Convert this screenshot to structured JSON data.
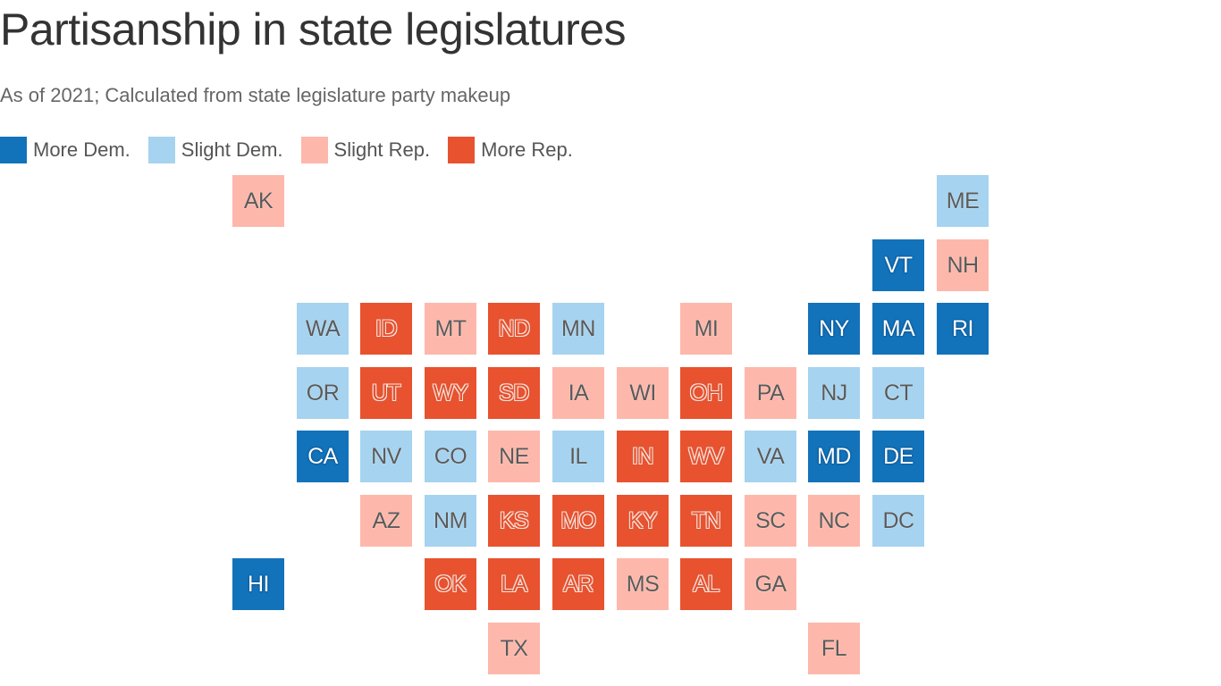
{
  "title": "Partisanship in state legislatures",
  "subtitle": "As of 2021; Calculated from state legislature party makeup",
  "legend": [
    {
      "key": "more_dem",
      "label": "More Dem.",
      "color": "#1273bb"
    },
    {
      "key": "slight_dem",
      "label": "Slight Dem.",
      "color": "#a6d3ef"
    },
    {
      "key": "slight_rep",
      "label": "Slight Rep.",
      "color": "#fdb8ab"
    },
    {
      "key": "more_rep",
      "label": "More Rep.",
      "color": "#e8522f"
    }
  ],
  "states": [
    {
      "abbr": "AK",
      "row": 0,
      "col": 0,
      "category": "slight_rep"
    },
    {
      "abbr": "ME",
      "row": 0,
      "col": 11,
      "category": "slight_dem"
    },
    {
      "abbr": "VT",
      "row": 1,
      "col": 10,
      "category": "more_dem"
    },
    {
      "abbr": "NH",
      "row": 1,
      "col": 11,
      "category": "slight_rep"
    },
    {
      "abbr": "WA",
      "row": 2,
      "col": 1,
      "category": "slight_dem"
    },
    {
      "abbr": "ID",
      "row": 2,
      "col": 2,
      "category": "more_rep"
    },
    {
      "abbr": "MT",
      "row": 2,
      "col": 3,
      "category": "slight_rep"
    },
    {
      "abbr": "ND",
      "row": 2,
      "col": 4,
      "category": "more_rep"
    },
    {
      "abbr": "MN",
      "row": 2,
      "col": 5,
      "category": "slight_dem"
    },
    {
      "abbr": "MI",
      "row": 2,
      "col": 7,
      "category": "slight_rep"
    },
    {
      "abbr": "NY",
      "row": 2,
      "col": 9,
      "category": "more_dem"
    },
    {
      "abbr": "MA",
      "row": 2,
      "col": 10,
      "category": "more_dem"
    },
    {
      "abbr": "RI",
      "row": 2,
      "col": 11,
      "category": "more_dem"
    },
    {
      "abbr": "OR",
      "row": 3,
      "col": 1,
      "category": "slight_dem"
    },
    {
      "abbr": "UT",
      "row": 3,
      "col": 2,
      "category": "more_rep"
    },
    {
      "abbr": "WY",
      "row": 3,
      "col": 3,
      "category": "more_rep"
    },
    {
      "abbr": "SD",
      "row": 3,
      "col": 4,
      "category": "more_rep"
    },
    {
      "abbr": "IA",
      "row": 3,
      "col": 5,
      "category": "slight_rep"
    },
    {
      "abbr": "WI",
      "row": 3,
      "col": 6,
      "category": "slight_rep"
    },
    {
      "abbr": "OH",
      "row": 3,
      "col": 7,
      "category": "more_rep"
    },
    {
      "abbr": "PA",
      "row": 3,
      "col": 8,
      "category": "slight_rep"
    },
    {
      "abbr": "NJ",
      "row": 3,
      "col": 9,
      "category": "slight_dem"
    },
    {
      "abbr": "CT",
      "row": 3,
      "col": 10,
      "category": "slight_dem"
    },
    {
      "abbr": "CA",
      "row": 4,
      "col": 1,
      "category": "more_dem"
    },
    {
      "abbr": "NV",
      "row": 4,
      "col": 2,
      "category": "slight_dem"
    },
    {
      "abbr": "CO",
      "row": 4,
      "col": 3,
      "category": "slight_dem"
    },
    {
      "abbr": "NE",
      "row": 4,
      "col": 4,
      "category": "slight_rep"
    },
    {
      "abbr": "IL",
      "row": 4,
      "col": 5,
      "category": "slight_dem"
    },
    {
      "abbr": "IN",
      "row": 4,
      "col": 6,
      "category": "more_rep"
    },
    {
      "abbr": "WV",
      "row": 4,
      "col": 7,
      "category": "more_rep"
    },
    {
      "abbr": "VA",
      "row": 4,
      "col": 8,
      "category": "slight_dem"
    },
    {
      "abbr": "MD",
      "row": 4,
      "col": 9,
      "category": "more_dem"
    },
    {
      "abbr": "DE",
      "row": 4,
      "col": 10,
      "category": "more_dem"
    },
    {
      "abbr": "AZ",
      "row": 5,
      "col": 2,
      "category": "slight_rep"
    },
    {
      "abbr": "NM",
      "row": 5,
      "col": 3,
      "category": "slight_dem"
    },
    {
      "abbr": "KS",
      "row": 5,
      "col": 4,
      "category": "more_rep"
    },
    {
      "abbr": "MO",
      "row": 5,
      "col": 5,
      "category": "more_rep"
    },
    {
      "abbr": "KY",
      "row": 5,
      "col": 6,
      "category": "more_rep"
    },
    {
      "abbr": "TN",
      "row": 5,
      "col": 7,
      "category": "more_rep"
    },
    {
      "abbr": "SC",
      "row": 5,
      "col": 8,
      "category": "slight_rep"
    },
    {
      "abbr": "NC",
      "row": 5,
      "col": 9,
      "category": "slight_rep"
    },
    {
      "abbr": "DC",
      "row": 5,
      "col": 10,
      "category": "slight_dem"
    },
    {
      "abbr": "HI",
      "row": 6,
      "col": 0,
      "category": "more_dem"
    },
    {
      "abbr": "OK",
      "row": 6,
      "col": 3,
      "category": "more_rep"
    },
    {
      "abbr": "LA",
      "row": 6,
      "col": 4,
      "category": "more_rep"
    },
    {
      "abbr": "AR",
      "row": 6,
      "col": 5,
      "category": "more_rep"
    },
    {
      "abbr": "MS",
      "row": 6,
      "col": 6,
      "category": "slight_rep"
    },
    {
      "abbr": "AL",
      "row": 6,
      "col": 7,
      "category": "more_rep"
    },
    {
      "abbr": "GA",
      "row": 6,
      "col": 8,
      "category": "slight_rep"
    },
    {
      "abbr": "TX",
      "row": 7,
      "col": 4,
      "category": "slight_rep"
    },
    {
      "abbr": "FL",
      "row": 7,
      "col": 9,
      "category": "slight_rep"
    }
  ]
}
